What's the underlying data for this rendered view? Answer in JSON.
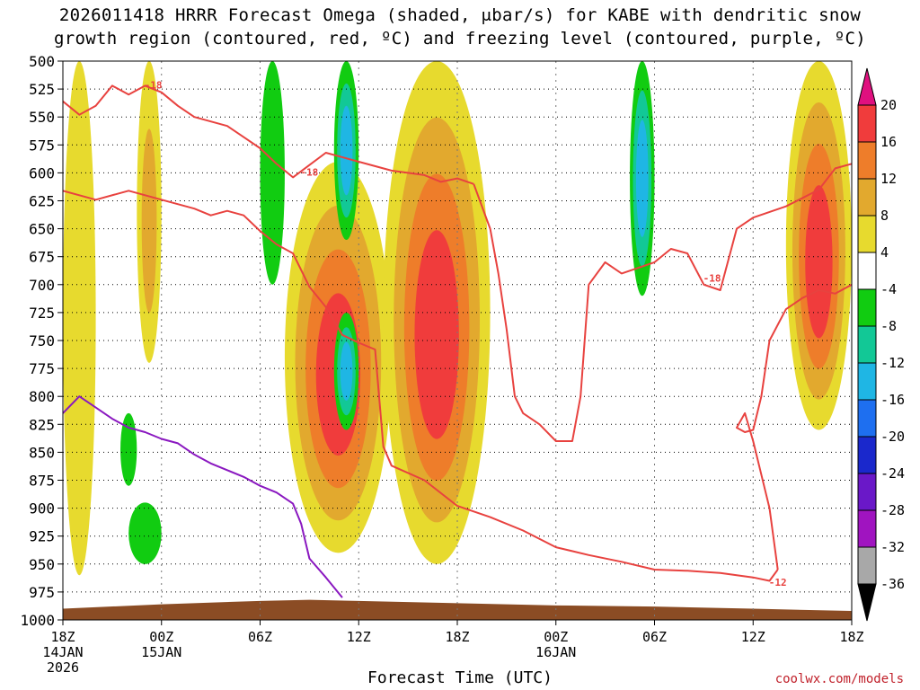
{
  "chart_data": {
    "type": "heatmap",
    "title_line1": "2026011418 HRRR Forecast Omega (shaded, μbar/s) for KABE with dendritic snow",
    "title_line2": "growth region (contoured, red, ºC) and freezing level (contoured, purple, ºC)",
    "xlabel": "Forecast Time (UTC)",
    "credit": "coolwx.com/models",
    "x_hours_range": [
      0,
      48
    ],
    "x_ticks": [
      {
        "h": 0,
        "label": "18Z",
        "date": "14JAN",
        "year": "2026"
      },
      {
        "h": 6,
        "label": "00Z",
        "date": "15JAN",
        "year": ""
      },
      {
        "h": 12,
        "label": "06Z",
        "date": "",
        "year": ""
      },
      {
        "h": 18,
        "label": "12Z",
        "date": "",
        "year": ""
      },
      {
        "h": 24,
        "label": "18Z",
        "date": "",
        "year": ""
      },
      {
        "h": 30,
        "label": "00Z",
        "date": "16JAN",
        "year": ""
      },
      {
        "h": 36,
        "label": "06Z",
        "date": "",
        "year": ""
      },
      {
        "h": 42,
        "label": "12Z",
        "date": "",
        "year": ""
      },
      {
        "h": 48,
        "label": "18Z",
        "date": "",
        "year": ""
      }
    ],
    "y_pressure_range_mb": [
      500,
      1000
    ],
    "y_ticks": [
      "500",
      "525",
      "550",
      "575",
      "600",
      "625",
      "650",
      "675",
      "700",
      "725",
      "750",
      "775",
      "800",
      "825",
      "850",
      "875",
      "900",
      "925",
      "950",
      "975",
      "1000"
    ],
    "colorbar": {
      "labels": [
        "20",
        "16",
        "12",
        "8",
        "4",
        "-4",
        "-8",
        "-12",
        "-16",
        "-20",
        "-24",
        "-28",
        "-32",
        "-36"
      ],
      "bins": [
        {
          "lo": 20,
          "hi": 24,
          "color": "#e0107f"
        },
        {
          "lo": 16,
          "hi": 20,
          "color": "#f03c3c"
        },
        {
          "lo": 12,
          "hi": 16,
          "color": "#ee7d2a"
        },
        {
          "lo": 8,
          "hi": 12,
          "color": "#e2a92e"
        },
        {
          "lo": 4,
          "hi": 8,
          "color": "#e7da2e"
        },
        {
          "lo": -4,
          "hi": 4,
          "color": "#ffffff"
        },
        {
          "lo": -8,
          "hi": -4,
          "color": "#11cc11"
        },
        {
          "lo": -12,
          "hi": -8,
          "color": "#12c896"
        },
        {
          "lo": -16,
          "hi": -12,
          "color": "#1fb6e4"
        },
        {
          "lo": -20,
          "hi": -16,
          "color": "#1e6ff0"
        },
        {
          "lo": -24,
          "hi": -20,
          "color": "#1a28cc"
        },
        {
          "lo": -28,
          "hi": -24,
          "color": "#6a18c8"
        },
        {
          "lo": -32,
          "hi": -28,
          "color": "#a014c0"
        },
        {
          "lo": -36,
          "hi": -32,
          "color": "#a8a8a8"
        },
        {
          "lo": -40,
          "hi": -36,
          "color": "#000000"
        }
      ]
    },
    "omega_features": [
      {
        "name": "upward-motion-core-1",
        "h": [
          13.5,
          20
        ],
        "p": [
          590,
          940
        ],
        "max": 19
      },
      {
        "name": "upward-motion-core-2",
        "h": [
          19.5,
          26
        ],
        "p": [
          500,
          950
        ],
        "max": 19
      },
      {
        "name": "upward-motion-late",
        "h": [
          44,
          48
        ],
        "p": [
          500,
          830
        ],
        "max": 19
      },
      {
        "name": "upward-motion-early-1",
        "h": [
          0,
          2
        ],
        "p": [
          500,
          960
        ],
        "max": 8
      },
      {
        "name": "upward-motion-early-2",
        "h": [
          4.5,
          6
        ],
        "p": [
          500,
          770
        ],
        "max": 12
      },
      {
        "name": "downward-motion-1",
        "h": [
          12,
          13.5
        ],
        "p": [
          500,
          700
        ],
        "min": -8
      },
      {
        "name": "downward-motion-2",
        "h": [
          16.5,
          18
        ],
        "p": [
          500,
          660
        ],
        "min": -15
      },
      {
        "name": "downward-motion-3",
        "h": [
          16.5,
          18
        ],
        "p": [
          725,
          830
        ],
        "min": -15
      },
      {
        "name": "downward-motion-4",
        "h": [
          34.5,
          36
        ],
        "p": [
          500,
          710
        ],
        "min": -14
      },
      {
        "name": "downward-motion-5",
        "h": [
          4,
          6
        ],
        "p": [
          895,
          950
        ],
        "min": -8
      },
      {
        "name": "downward-motion-6",
        "h": [
          3.5,
          4.5
        ],
        "p": [
          815,
          880
        ],
        "min": -8
      }
    ],
    "contours": [
      {
        "name": "dgz-minus18-upper",
        "level": "-18",
        "color": "#e8423f",
        "points": [
          [
            0,
            536
          ],
          [
            1,
            548
          ],
          [
            2,
            540
          ],
          [
            3,
            522
          ],
          [
            4,
            530
          ],
          [
            5,
            522
          ],
          [
            6,
            528
          ],
          [
            7,
            540
          ],
          [
            8,
            550
          ],
          [
            9,
            554
          ],
          [
            10,
            558
          ],
          [
            11,
            568
          ],
          [
            12,
            578
          ],
          [
            13,
            592
          ],
          [
            14,
            604
          ],
          [
            15,
            593
          ],
          [
            16,
            582
          ],
          [
            18,
            590
          ],
          [
            20,
            598
          ],
          [
            22,
            602
          ],
          [
            23,
            608
          ],
          [
            24,
            605
          ],
          [
            25,
            610
          ]
        ]
      },
      {
        "name": "dgz-minus12",
        "level": "-12",
        "color": "#e8423f",
        "points": [
          [
            0,
            616
          ],
          [
            2,
            624
          ],
          [
            4,
            616
          ],
          [
            6,
            624
          ],
          [
            8,
            632
          ],
          [
            9,
            638
          ],
          [
            10,
            634
          ],
          [
            11,
            638
          ],
          [
            12,
            652
          ],
          [
            13,
            664
          ],
          [
            14,
            672
          ],
          [
            15,
            702
          ],
          [
            16,
            720
          ],
          [
            17,
            745
          ],
          [
            18,
            752
          ],
          [
            19,
            758
          ],
          [
            19.5,
            845
          ],
          [
            20,
            862
          ],
          [
            22,
            875
          ],
          [
            24,
            898
          ],
          [
            26,
            908
          ],
          [
            28,
            920
          ],
          [
            30,
            935
          ],
          [
            32,
            942
          ],
          [
            34,
            948
          ],
          [
            36,
            955
          ],
          [
            38,
            956
          ],
          [
            40,
            958
          ],
          [
            42,
            962
          ],
          [
            43,
            965
          ],
          [
            43.5,
            955
          ]
        ]
      },
      {
        "name": "dgz-minus12-right",
        "level": "-12",
        "color": "#e8423f",
        "points": [
          [
            43.5,
            955
          ],
          [
            43,
            900
          ],
          [
            42.5,
            870
          ],
          [
            42,
            840
          ],
          [
            41.5,
            815
          ],
          [
            41,
            828
          ],
          [
            41.5,
            832
          ],
          [
            42,
            830
          ],
          [
            42.5,
            800
          ],
          [
            43,
            750
          ],
          [
            44,
            722
          ],
          [
            45,
            712
          ],
          [
            46,
            705
          ],
          [
            47,
            708
          ],
          [
            48,
            700
          ]
        ]
      },
      {
        "name": "dgz-minus18-lower-loop",
        "level": "-18",
        "color": "#e8423f",
        "points": [
          [
            25,
            610
          ],
          [
            26,
            650
          ],
          [
            26.5,
            690
          ],
          [
            27,
            740
          ],
          [
            27.5,
            800
          ],
          [
            28,
            815
          ],
          [
            29,
            825
          ],
          [
            30,
            840
          ],
          [
            31,
            840
          ],
          [
            31.5,
            800
          ],
          [
            32,
            700
          ],
          [
            33,
            680
          ],
          [
            34,
            690
          ],
          [
            36,
            680
          ],
          [
            37,
            668
          ],
          [
            38,
            672
          ],
          [
            39,
            700
          ],
          [
            40,
            705
          ],
          [
            41,
            650
          ],
          [
            42,
            640
          ],
          [
            44,
            630
          ],
          [
            46,
            615
          ],
          [
            47,
            596
          ],
          [
            48,
            592
          ]
        ]
      },
      {
        "name": "freezing-level",
        "level": "0",
        "color": "#8a18c0",
        "points": [
          [
            0,
            815
          ],
          [
            1,
            800
          ],
          [
            2,
            810
          ],
          [
            3,
            820
          ],
          [
            4,
            828
          ],
          [
            5,
            832
          ],
          [
            6,
            838
          ],
          [
            7,
            842
          ],
          [
            8,
            852
          ],
          [
            9,
            860
          ],
          [
            10,
            866
          ],
          [
            11,
            872
          ],
          [
            12,
            880
          ],
          [
            13,
            886
          ],
          [
            14,
            896
          ],
          [
            14.5,
            914
          ],
          [
            15,
            945
          ],
          [
            16,
            962
          ],
          [
            17,
            980
          ]
        ]
      }
    ],
    "contour_labels": [
      {
        "text": "-18",
        "h": 5.5,
        "p": 522
      },
      {
        "text": "-18",
        "h": 15,
        "p": 600
      },
      {
        "text": "-18",
        "h": 39.5,
        "p": 695
      },
      {
        "text": "-12",
        "h": 43.5,
        "p": 967
      }
    ],
    "terrain": {
      "color": "#8b4c24",
      "surface_p": [
        [
          0,
          990
        ],
        [
          6,
          986
        ],
        [
          12,
          983
        ],
        [
          15,
          982
        ],
        [
          18,
          983
        ],
        [
          24,
          985
        ],
        [
          30,
          987
        ],
        [
          36,
          988
        ],
        [
          42,
          990
        ],
        [
          48,
          992
        ]
      ]
    }
  }
}
